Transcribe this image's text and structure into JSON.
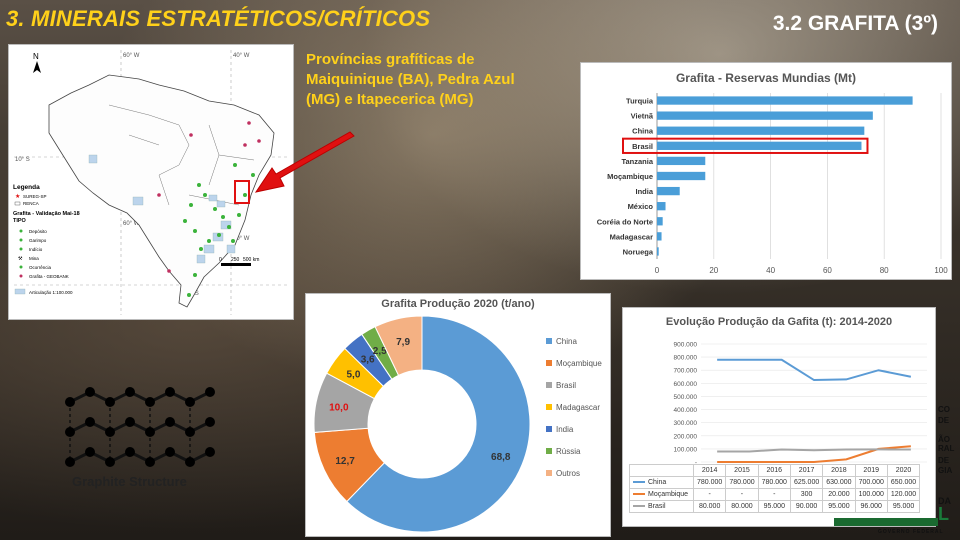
{
  "header": {
    "title": "3. MINERAIS ESTRATÉTICOS/CRÍTICOS",
    "subtitle": "3.2 GRAFITA (3º)"
  },
  "caption": "Províncias grafíticas de Maiquinique (BA), Pedra Azul (MG) e Itapecerica (MG)",
  "map": {
    "north_label": "N",
    "lat_labels": [
      "10° S",
      "30° S"
    ],
    "lon_labels": [
      "60° W",
      "40° W",
      "60° W",
      "40° W"
    ],
    "scale_labels": [
      "0",
      "250",
      "500 km"
    ],
    "legend": {
      "title": "Legenda",
      "items": [
        "SUREG-SP",
        "RENCA"
      ],
      "section": "Grafita - Validação Mai-18",
      "type_title": "TIPO",
      "types": [
        "Depósito",
        "Garimpo",
        "Indício",
        "Mina",
        "Ocorrência",
        "Grafita - GEOBANK",
        "Articulação 1:100.000"
      ]
    }
  },
  "graphite_label": "Graphite Structure",
  "side_labels": [
    "CO",
    "DE",
    "ÃO",
    "RAL",
    "DE",
    "GIA",
    "DA",
    "L"
  ],
  "footer_text": "GOVERNO FEDERAL",
  "colors": {
    "china": "#5b9bd5",
    "mocambique": "#ed7d31",
    "brasil": "#a5a5a5",
    "madagascar": "#ffc000",
    "india": "#4472c4",
    "russia": "#70ad47",
    "outros": "#f4b183",
    "bar": "#4a9ed8",
    "highlight": "#e01010",
    "title_yellow": "#ffd11a"
  },
  "chart_data": [
    {
      "type": "bar",
      "orientation": "horizontal",
      "title": "Grafita - Reservas Mundias (Mt)",
      "categories": [
        "Turquia",
        "Vietnã",
        "China",
        "Brasil",
        "Tanzania",
        "Moçambique",
        "India",
        "México",
        "Coréia do Norte",
        "Madagascar",
        "Noruega"
      ],
      "values": [
        90,
        76,
        73,
        72,
        17,
        17,
        8,
        3,
        2,
        1.6,
        0.6
      ],
      "highlight": "Brasil",
      "xlim": [
        0,
        100
      ],
      "xticks": [
        "0",
        "20",
        "40",
        "60",
        "80",
        "100"
      ]
    },
    {
      "type": "pie",
      "title": "Grafita Produção 2020 (t/ano)",
      "categories": [
        "China",
        "Moçambique",
        "Brasil",
        "Madagascar",
        "India",
        "Rússia",
        "Outros"
      ],
      "values": [
        68.8,
        12.7,
        10.0,
        5.0,
        3.6,
        2.5,
        7.9
      ],
      "labels": [
        "68,8",
        "12,7",
        "10,0",
        "5,0",
        "3,6",
        "2,5",
        "7,9"
      ]
    },
    {
      "type": "line",
      "title": "Evolução Produção da Gafita (t): 2014-2020",
      "x": [
        "2014",
        "2015",
        "2016",
        "2017",
        "2018",
        "2019",
        "2020"
      ],
      "ylim": [
        0,
        900000
      ],
      "yticks": [
        "-",
        "100.000",
        "200.000",
        "300.000",
        "400.000",
        "500.000",
        "600.000",
        "700.000",
        "800.000",
        "900.000"
      ],
      "series": [
        {
          "name": "China",
          "values": [
            780000,
            780000,
            780000,
            625000,
            630000,
            700000,
            650000
          ],
          "labels": [
            "780.000",
            "780.000",
            "780.000",
            "625.000",
            "630.000",
            "700.000",
            "650.000"
          ]
        },
        {
          "name": "Moçambique",
          "values": [
            0,
            0,
            0,
            300,
            20000,
            100000,
            120000
          ],
          "labels": [
            "-",
            "-",
            "-",
            "300",
            "20.000",
            "100.000",
            "120.000"
          ]
        },
        {
          "name": "Brasil",
          "values": [
            80000,
            80000,
            95000,
            90000,
            95000,
            96000,
            95000
          ],
          "labels": [
            "80.000",
            "80.000",
            "95.000",
            "90.000",
            "95.000",
            "96.000",
            "95.000"
          ]
        }
      ]
    }
  ]
}
